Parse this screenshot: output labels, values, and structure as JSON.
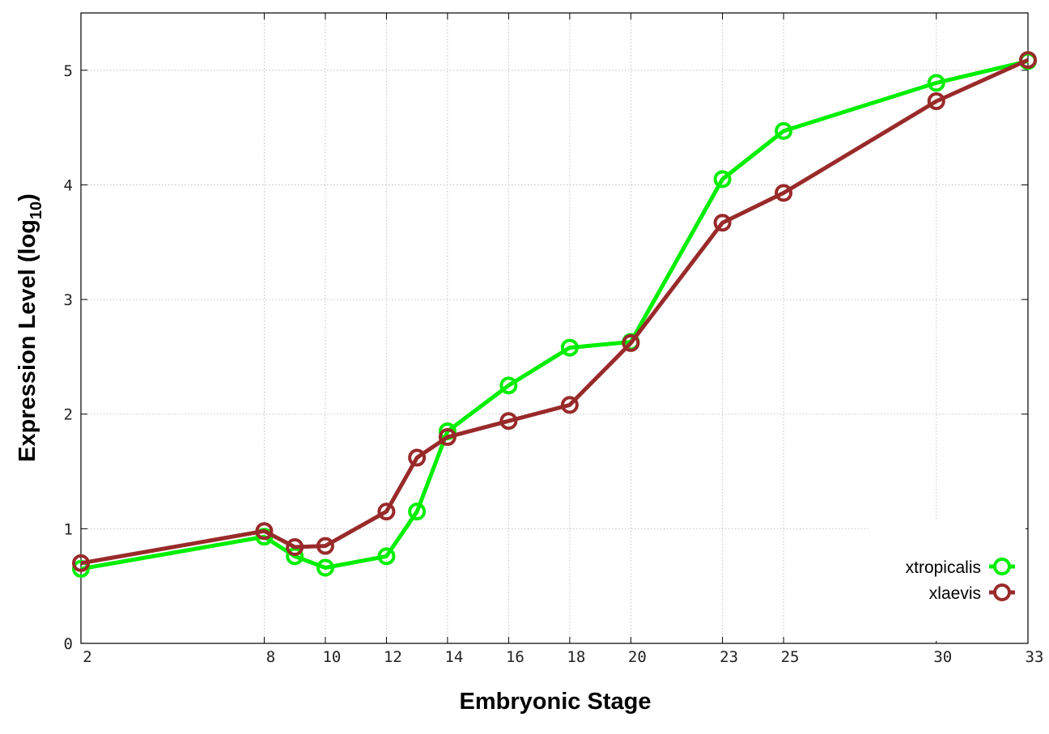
{
  "chart_data": {
    "type": "line",
    "xlabel": "Embryonic Stage",
    "ylabel": {
      "prefix": "Expression Level (log",
      "subscript": "10",
      "suffix": ")"
    },
    "x": [
      2,
      8,
      9,
      10,
      12,
      13,
      14,
      16,
      18,
      20,
      23,
      25,
      30,
      33
    ],
    "xticks": [
      2,
      8,
      10,
      12,
      14,
      16,
      18,
      20,
      23,
      25,
      30,
      33
    ],
    "yticks": [
      0,
      1,
      2,
      3,
      4,
      5
    ],
    "xlim": [
      2,
      33
    ],
    "ylim": [
      0,
      5.5
    ],
    "grid": true,
    "legend_position": "bottom-right",
    "series": [
      {
        "name": "xtropicalis",
        "color": "#00ee00",
        "values": [
          0.65,
          0.93,
          0.76,
          0.66,
          0.76,
          1.15,
          1.85,
          2.25,
          2.58,
          2.63,
          4.05,
          4.47,
          4.89,
          5.08
        ]
      },
      {
        "name": "xlaevis",
        "color": "#992a2a",
        "values": [
          0.7,
          0.98,
          0.84,
          0.85,
          1.15,
          1.62,
          1.8,
          1.94,
          2.08,
          2.62,
          3.67,
          3.93,
          4.73,
          5.09
        ]
      }
    ]
  }
}
